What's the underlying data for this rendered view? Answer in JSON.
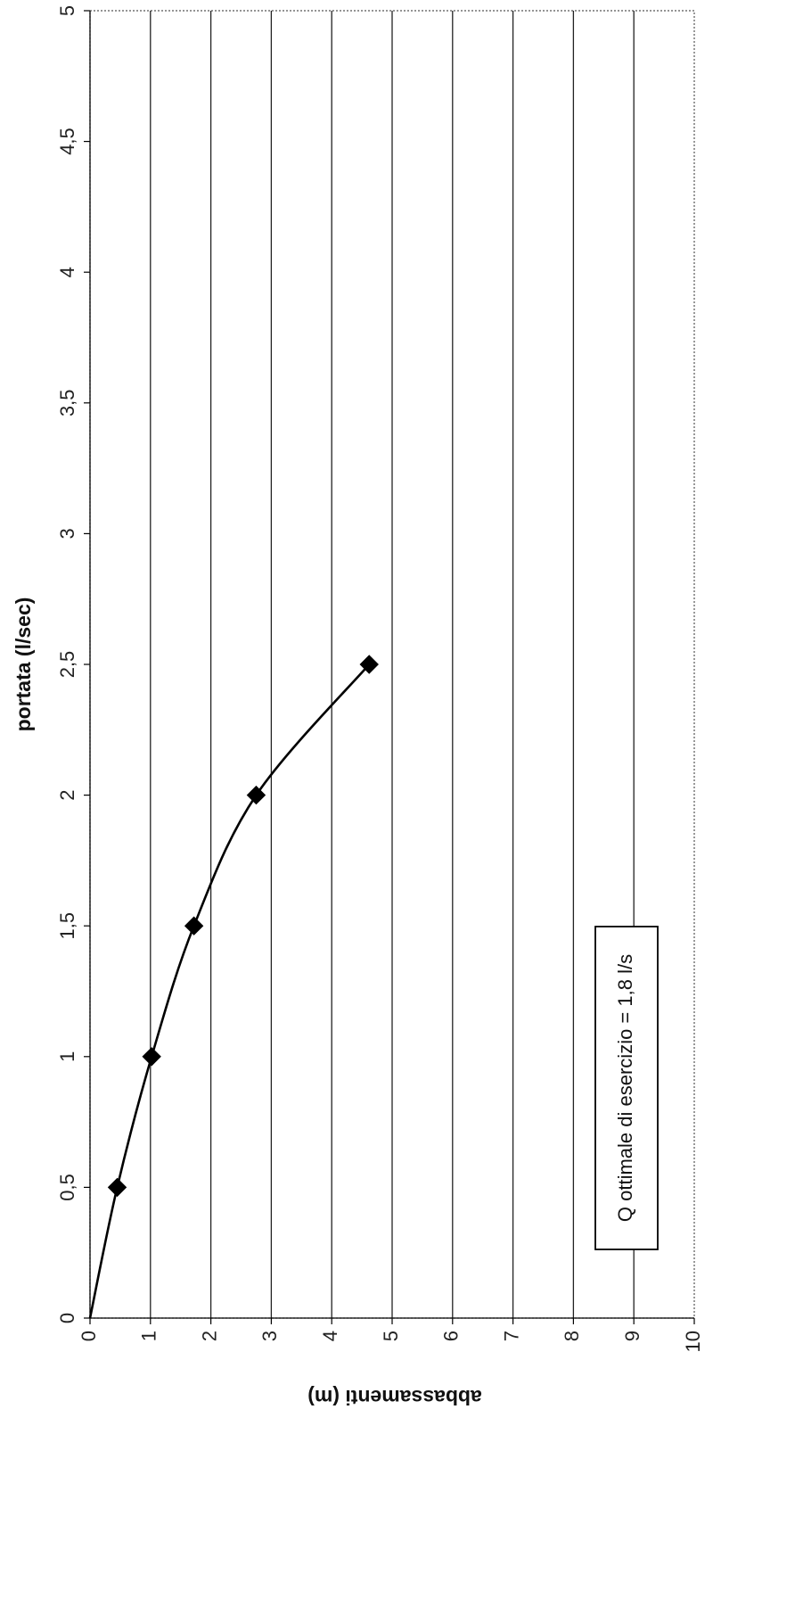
{
  "chart_data": {
    "type": "scatter",
    "orientation": "rotated-90-ccw",
    "x": [
      0,
      0.45,
      1.02,
      1.72,
      2.75,
      4.62
    ],
    "y": [
      0,
      0.5,
      1.0,
      1.5,
      2.0,
      2.5
    ],
    "markers": [
      {
        "x": 0.45,
        "y": 0.5
      },
      {
        "x": 1.02,
        "y": 1.0
      },
      {
        "x": 1.72,
        "y": 1.5
      },
      {
        "x": 2.75,
        "y": 2.0
      },
      {
        "x": 4.62,
        "y": 2.5
      }
    ],
    "xlabel": "abbassamenti (m)",
    "ylabel": "portata (l/sec)",
    "xlim": [
      0,
      10
    ],
    "ylim": [
      0,
      5
    ],
    "x_ticks": [
      "0",
      "1",
      "2",
      "3",
      "4",
      "5",
      "6",
      "7",
      "8",
      "9",
      "10"
    ],
    "y_ticks": [
      "0",
      "0,5",
      "1",
      "1,5",
      "2",
      "2,5",
      "3",
      "3,5",
      "4",
      "4,5",
      "5"
    ],
    "grid": true,
    "legend": "none",
    "annotation": "Q ottimale di esercizio = 1,8 l/s",
    "colors": {
      "line": "#000000",
      "marker": "#000000",
      "grid": "#222222"
    }
  }
}
